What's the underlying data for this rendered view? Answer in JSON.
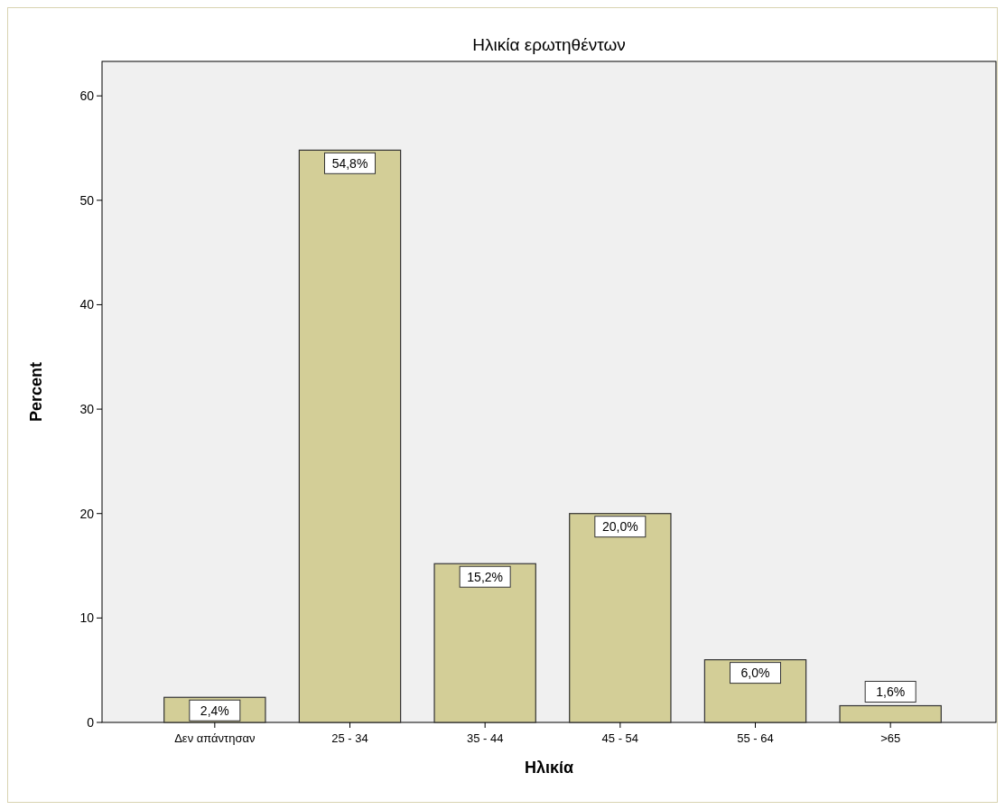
{
  "chart_data": {
    "type": "bar",
    "title": "Ηλικία ερωτηθέντων",
    "xlabel": "Ηλικία",
    "ylabel": "Percent",
    "categories": [
      "Δεν απάντησαν",
      "25 - 34",
      "35 - 44",
      "45 - 54",
      "55 - 64",
      ">65"
    ],
    "values": [
      2.4,
      54.8,
      15.2,
      20.0,
      6.0,
      1.6
    ],
    "value_labels": [
      "2,4%",
      "54,8%",
      "15,2%",
      "20,0%",
      "6,0%",
      "1,6%"
    ],
    "color": "#d3ce97",
    "ylim": [
      0,
      63.3
    ],
    "yticks": [
      0,
      10,
      20,
      30,
      40,
      50,
      60
    ],
    "grid": false
  }
}
